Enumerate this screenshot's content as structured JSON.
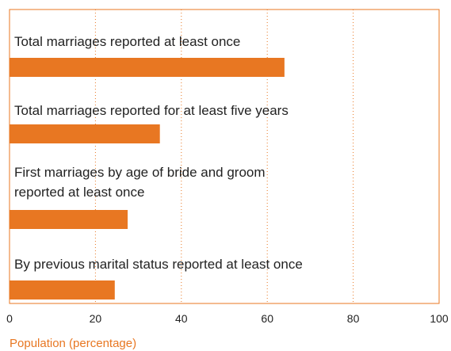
{
  "chart_data": {
    "type": "bar",
    "orientation": "horizontal",
    "categories": [
      "Total marriages reported at least once",
      "Total marriages reported for at least five years",
      "First marriages by age of bride and groom\nreported at least once",
      "By previous marital status reported at least once"
    ],
    "values": [
      64,
      35,
      27.5,
      24.5
    ],
    "color": "#e87722",
    "xlim": [
      0,
      100
    ],
    "xticks": [
      0,
      20,
      40,
      60,
      80,
      100
    ],
    "grid": true,
    "x_label": "Population (percentage)"
  }
}
